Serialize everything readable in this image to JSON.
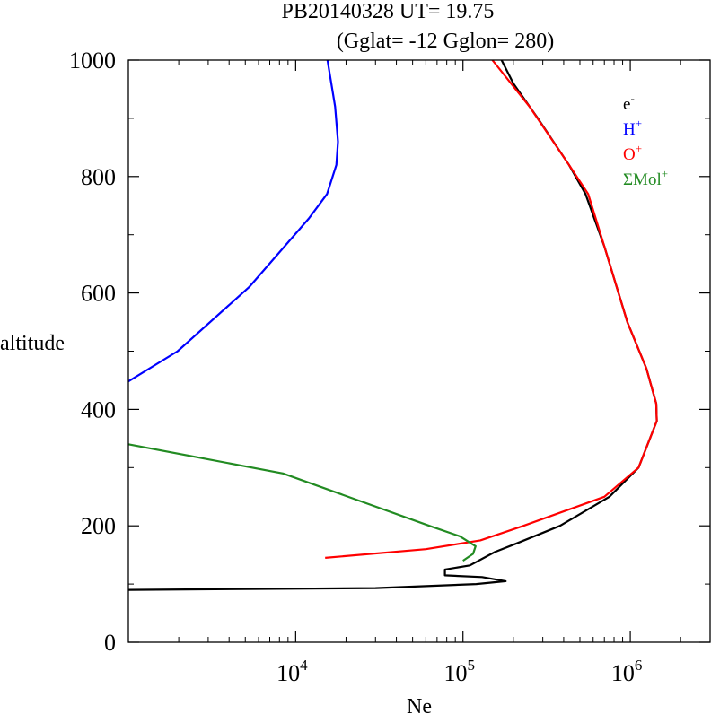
{
  "chart_data": {
    "type": "line",
    "title": "PB20140328   UT=  19.75",
    "subtitle": "(Gglat= -12   Gglon=  280)",
    "xlabel": "Ne",
    "ylabel": "altitude",
    "x_scale": "log",
    "xlim": [
      1000,
      3000000
    ],
    "ylim": [
      0,
      1000
    ],
    "x_ticks": [
      {
        "value": 10000,
        "base": "10",
        "exp": "4"
      },
      {
        "value": 100000,
        "base": "10",
        "exp": "5"
      },
      {
        "value": 1000000,
        "base": "10",
        "exp": "6"
      }
    ],
    "y_ticks": [
      0,
      200,
      400,
      600,
      800,
      1000
    ],
    "legend_position": "top-right",
    "series": [
      {
        "name": "e-",
        "label_base": "e",
        "label_sup": "-",
        "color": "#000000",
        "points": [
          [
            1000,
            90
          ],
          [
            30000,
            93
          ],
          [
            120000,
            100
          ],
          [
            180000,
            105
          ],
          [
            130000,
            112
          ],
          [
            78000,
            115
          ],
          [
            78000,
            125
          ],
          [
            110000,
            132
          ],
          [
            155000,
            155
          ],
          [
            210000,
            170
          ],
          [
            380000,
            200
          ],
          [
            750000,
            250
          ],
          [
            1120000,
            300
          ],
          [
            1440000,
            380
          ],
          [
            1430000,
            410
          ],
          [
            1250000,
            470
          ],
          [
            960000,
            550
          ],
          [
            700000,
            680
          ],
          [
            540000,
            770
          ],
          [
            430000,
            820
          ],
          [
            280000,
            900
          ],
          [
            200000,
            960
          ],
          [
            170000,
            1000
          ]
        ]
      },
      {
        "name": "H+",
        "label_base": "H",
        "label_sup": "+",
        "color": "#0000ff",
        "points": [
          [
            1000,
            448
          ],
          [
            1970,
            500
          ],
          [
            5270,
            610
          ],
          [
            12000,
            728
          ],
          [
            15400,
            770
          ],
          [
            17500,
            820
          ],
          [
            17900,
            860
          ],
          [
            17200,
            920
          ],
          [
            15500,
            1000
          ]
        ]
      },
      {
        "name": "O+",
        "label_base": "O",
        "label_sup": "+",
        "color": "#ff0000",
        "points": [
          [
            15000,
            145
          ],
          [
            60000,
            160
          ],
          [
            127000,
            175
          ],
          [
            230000,
            200
          ],
          [
            700000,
            250
          ],
          [
            1120000,
            300
          ],
          [
            1440000,
            380
          ],
          [
            1430000,
            410
          ],
          [
            1250000,
            470
          ],
          [
            960000,
            550
          ],
          [
            700000,
            680
          ],
          [
            560000,
            770
          ],
          [
            430000,
            820
          ],
          [
            250000,
            920
          ],
          [
            150000,
            1000
          ]
        ]
      },
      {
        "name": "ΣMol+",
        "label_base": "ΣMol",
        "label_sup": "+",
        "color": "#228b22",
        "points": [
          [
            1000,
            340
          ],
          [
            8400,
            290
          ],
          [
            63000,
            200
          ],
          [
            96000,
            182
          ],
          [
            119000,
            165
          ],
          [
            115000,
            152
          ],
          [
            100000,
            140
          ]
        ]
      }
    ]
  }
}
